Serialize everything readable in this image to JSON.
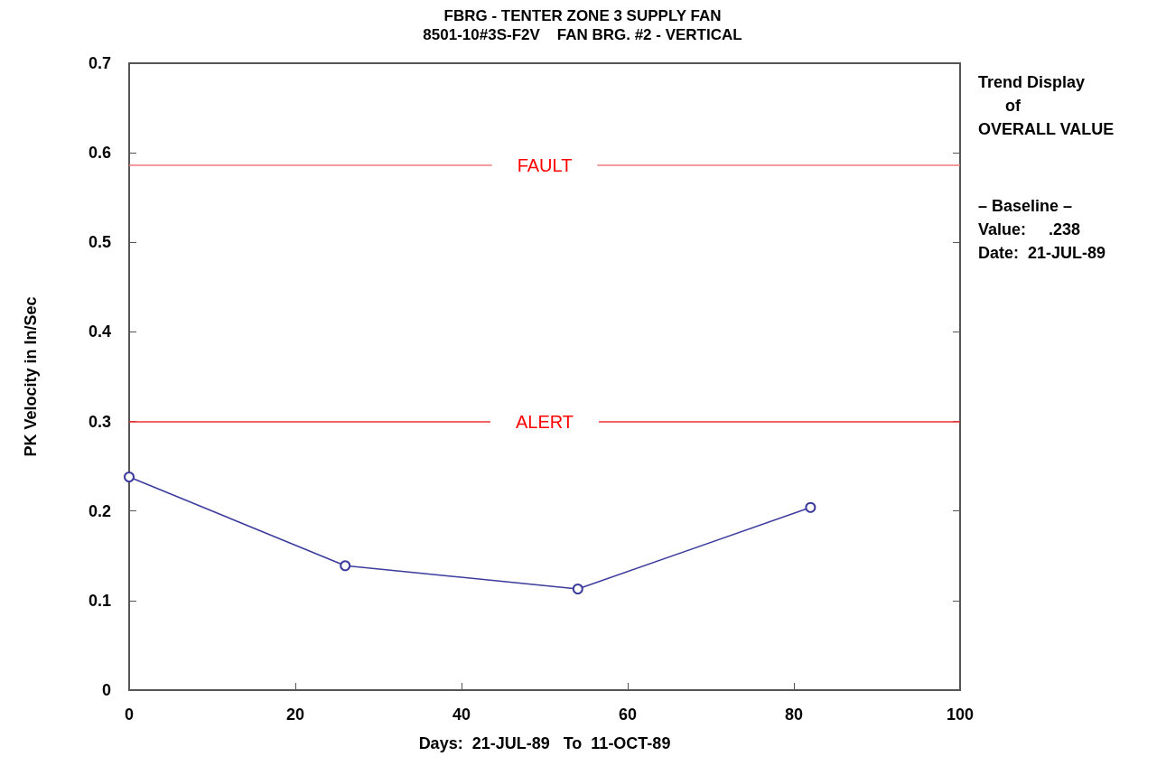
{
  "chart_data": {
    "type": "line",
    "title": "FBRG - TENTER ZONE 3 SUPPLY FAN",
    "subtitle": "8501-10#3S-F2V    FAN BRG. #2 - VERTICAL",
    "xlabel": "Days:  21-JUL-89   To  11-OCT-89",
    "ylabel": "PK Velocity in In/Sec",
    "x": [
      0,
      26,
      54,
      82
    ],
    "series": [
      {
        "color": "#3b3b9e",
        "values": [
          0.238,
          0.139,
          0.113,
          0.204
        ]
      }
    ],
    "xlim": [
      0,
      100
    ],
    "xticks": [
      0,
      20,
      40,
      60,
      80,
      100
    ],
    "ylim": [
      0,
      0.7
    ],
    "yticks": [
      0,
      0.1,
      0.2,
      0.3,
      0.4,
      0.5,
      0.6,
      0.7
    ],
    "ref_lines": [
      {
        "axis": "y",
        "value": 0.586,
        "label": "FAULT",
        "color": "#f07878"
      },
      {
        "axis": "y",
        "value": 0.3,
        "label": "ALERT",
        "color": "#f03030"
      }
    ],
    "annotations": [
      "Trend Display\n      of\nOVERALL VALUE",
      "– Baseline –\nValue:     .238\nDate:  21-JUL-89"
    ],
    "marker": "circle",
    "line_style": "solid",
    "grid": false
  }
}
